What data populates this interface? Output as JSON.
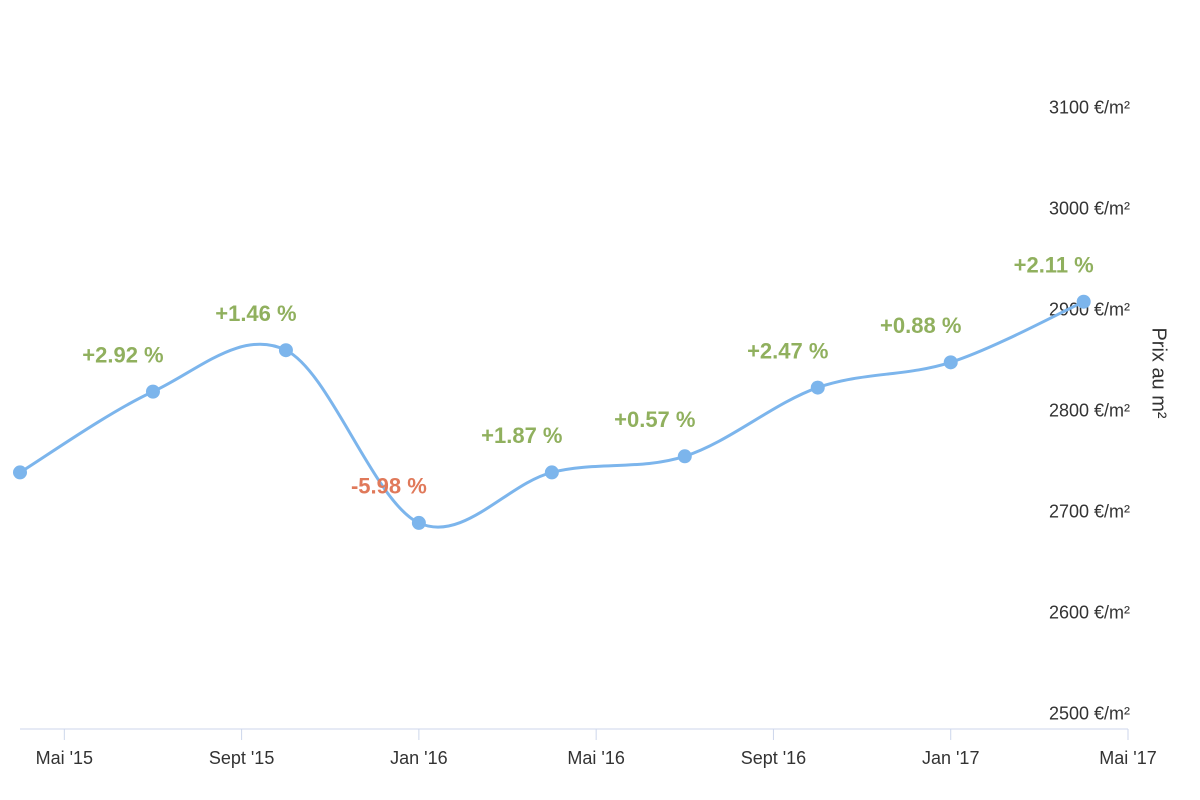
{
  "chart_data": {
    "type": "line",
    "y_axis_title": "Prix au m²",
    "x": [
      "2015-04",
      "2015-07",
      "2015-10",
      "2016-01",
      "2016-04",
      "2016-07",
      "2016-10",
      "2017-01",
      "2017-04"
    ],
    "values": [
      2740,
      2820,
      2861,
      2690,
      2740,
      2756,
      2824,
      2849,
      2909
    ],
    "color": "#7cb5ec",
    "smooth": true,
    "data_labels": {
      "values": [
        null,
        2.92,
        1.46,
        -5.98,
        1.87,
        0.57,
        2.47,
        0.88,
        2.11
      ],
      "value_labels": [
        null,
        "+2.92 %",
        "+1.46 %",
        "-5.98 %",
        "+1.87 %",
        "+0.57 %",
        "+2.47 %",
        "+0.88 %",
        "+2.11 %"
      ],
      "positive_color": "#90b05e",
      "negative_color": "#e0795a"
    },
    "xlim": [
      "2015-04",
      "2017-05"
    ],
    "xticks": [
      {
        "value": "2015-05",
        "label": "Mai '15"
      },
      {
        "value": "2015-09",
        "label": "Sept '15"
      },
      {
        "value": "2016-01",
        "label": "Jan '16"
      },
      {
        "value": "2016-05",
        "label": "Mai '16"
      },
      {
        "value": "2016-09",
        "label": "Sept '16"
      },
      {
        "value": "2017-01",
        "label": "Jan '17"
      },
      {
        "value": "2017-05",
        "label": "Mai '17"
      }
    ],
    "ylim": [
      2486,
      3178
    ],
    "yticks": [
      {
        "value": 2500,
        "label": "2500 €/m²"
      },
      {
        "value": 2600,
        "label": "2600 €/m²"
      },
      {
        "value": 2700,
        "label": "2700 €/m²"
      },
      {
        "value": 2800,
        "label": "2800 €/m²"
      },
      {
        "value": 2900,
        "label": "2900 €/m²"
      },
      {
        "value": 3000,
        "label": "3000 €/m²"
      },
      {
        "value": 3100,
        "label": "3100 €/m²"
      }
    ],
    "y_axis_side": "right",
    "grid": false
  }
}
